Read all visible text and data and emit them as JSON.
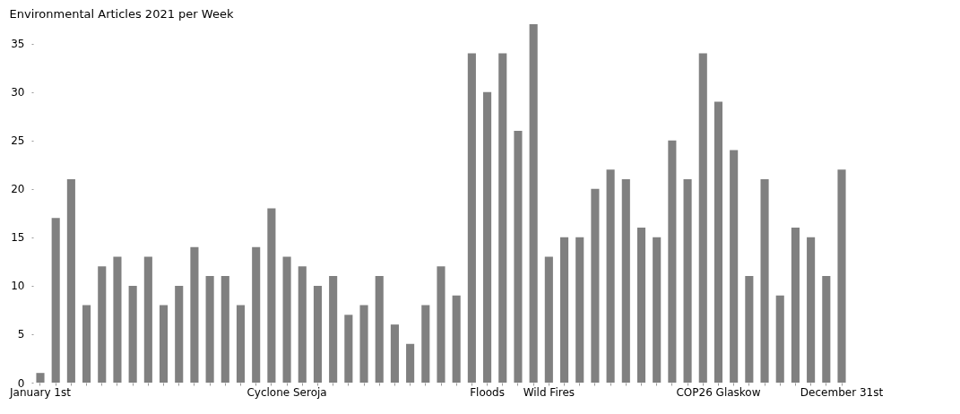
{
  "chart_data": {
    "type": "bar",
    "title": "Environmental Articles 2021 per Week",
    "categories": [
      "January 1st",
      null,
      null,
      null,
      null,
      null,
      null,
      null,
      null,
      null,
      null,
      null,
      null,
      null,
      null,
      null,
      "Cyclone Seroja",
      null,
      null,
      null,
      null,
      null,
      null,
      null,
      null,
      null,
      null,
      null,
      null,
      "Floods",
      null,
      null,
      null,
      "Wild Fires",
      null,
      null,
      null,
      null,
      null,
      null,
      null,
      null,
      null,
      null,
      "COP26 Glaskow",
      null,
      null,
      null,
      null,
      null,
      null,
      null,
      "December 31st"
    ],
    "values": [
      1,
      17,
      21,
      8,
      12,
      13,
      10,
      13,
      8,
      10,
      14,
      11,
      11,
      8,
      14,
      18,
      13,
      12,
      10,
      11,
      7,
      8,
      11,
      6,
      4,
      8,
      12,
      9,
      34,
      30,
      34,
      26,
      37,
      13,
      15,
      15,
      20,
      22,
      21,
      16,
      15,
      25,
      21,
      34,
      29,
      24,
      11,
      21,
      9,
      16,
      15,
      11,
      22
    ],
    "color": "#808080",
    "ylim": [
      0,
      37
    ],
    "yticks": [
      0,
      5,
      10,
      15,
      20,
      25,
      30,
      35
    ],
    "grid": false
  }
}
